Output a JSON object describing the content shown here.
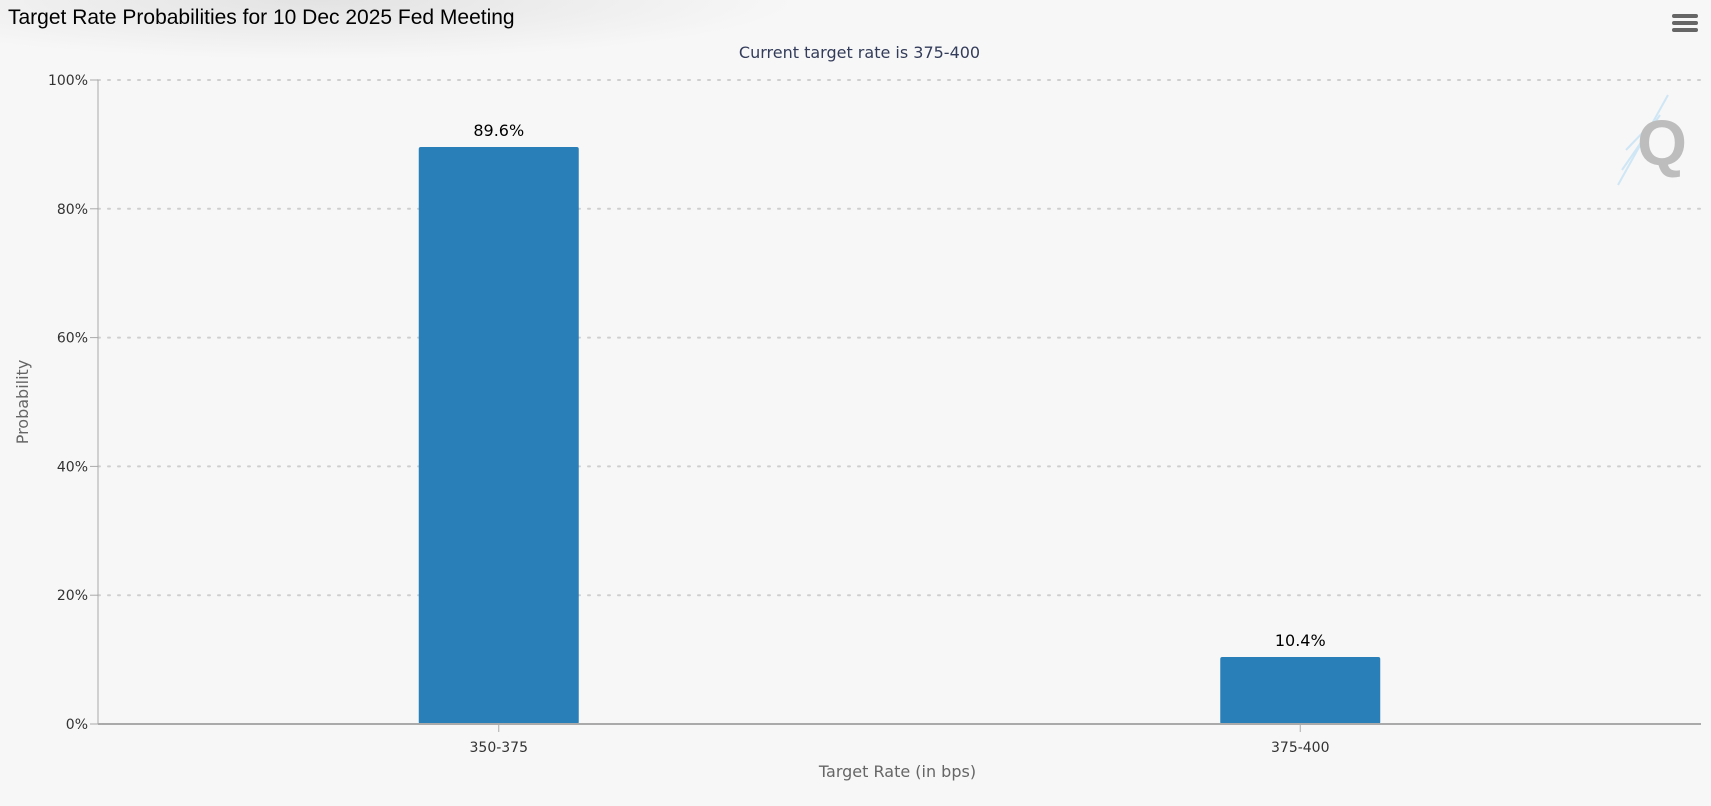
{
  "header": {
    "title": "Target Rate Probabilities for 10 Dec 2025 Fed Meeting",
    "menu_icon": "hamburger-menu-icon"
  },
  "chart_data": {
    "type": "bar",
    "title": "Target Rate Probabilities for 10 Dec 2025 Fed Meeting",
    "subtitle": "Current target rate is 375-400",
    "categories": [
      "350-375",
      "375-400"
    ],
    "values": [
      89.6,
      10.4
    ],
    "data_labels": [
      "89.6%",
      "10.4%"
    ],
    "xlabel": "Target Rate (in bps)",
    "ylabel": "Probability",
    "ylim": [
      0,
      100
    ],
    "yticks": [
      0,
      20,
      40,
      60,
      80,
      100
    ],
    "ytick_labels": [
      "0%",
      "20%",
      "40%",
      "60%",
      "80%",
      "100%"
    ],
    "grid": true,
    "bar_color": "#2980b9",
    "legend": "none"
  },
  "watermark": {
    "icon": "q-logo-icon"
  }
}
